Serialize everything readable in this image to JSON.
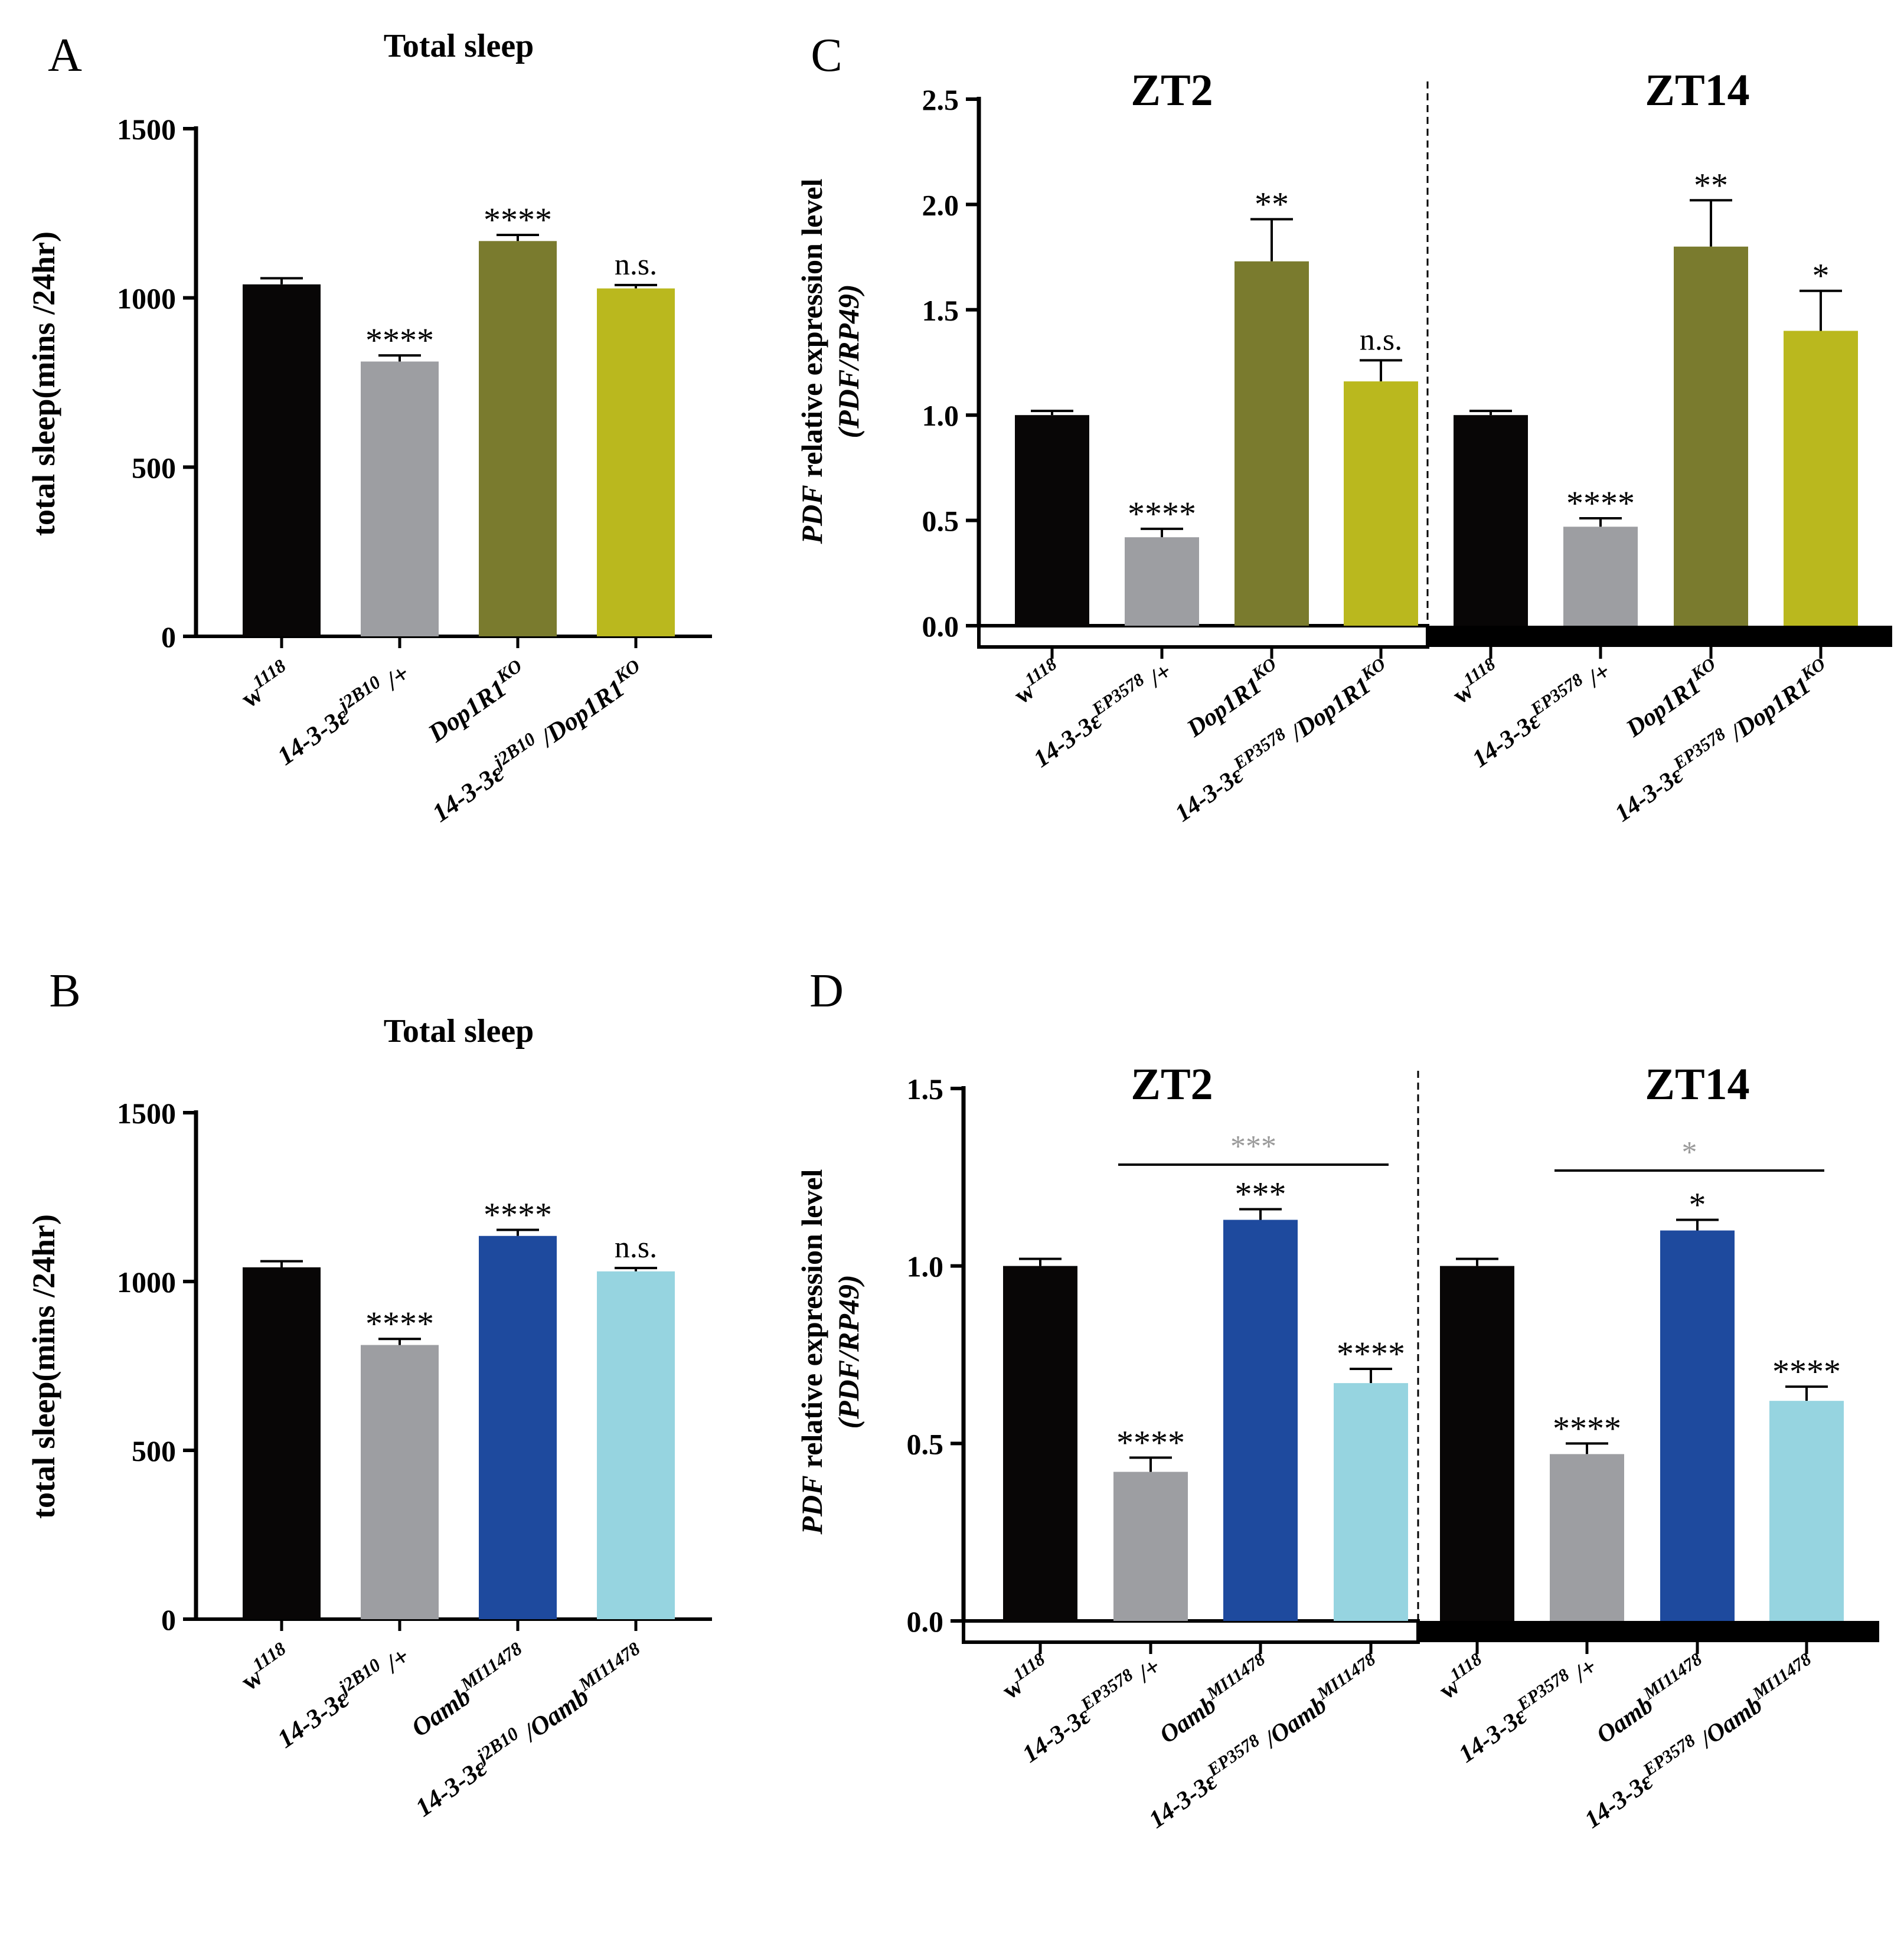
{
  "figure": {
    "background": "#ffffff"
  },
  "chart_data": [
    {
      "id": "A",
      "panel_label": "A",
      "type": "bar",
      "title": "Total sleep",
      "ylabel": "total sleep(mins /24hr)",
      "ylim": [
        0,
        1500
      ],
      "yticks": [
        0,
        500,
        1000,
        1500
      ],
      "categories": [
        {
          "base": "w",
          "sup": "1118"
        },
        {
          "base": "14-3-3ε",
          "sup": "j2B10",
          "suffix": " /+"
        },
        {
          "base": "Dop1R1",
          "sup": "KO"
        },
        {
          "base": "14-3-3ε",
          "sup": "j2B10",
          "suffix": " /Dop1R1",
          "sup2": "KO"
        }
      ],
      "values": [
        1040,
        812,
        1168,
        1028
      ],
      "errors": [
        18,
        18,
        18,
        10
      ],
      "annotations": [
        "",
        "****",
        "****",
        "n.s."
      ],
      "colors": [
        "#080606",
        "#9d9ea2",
        "#7a7b2e",
        "#bab81e"
      ]
    },
    {
      "id": "B",
      "panel_label": "B",
      "type": "bar",
      "title": "Total sleep",
      "ylabel": "total sleep(mins /24hr)",
      "ylim": [
        0,
        1500
      ],
      "yticks": [
        0,
        500,
        1000,
        1500
      ],
      "categories": [
        {
          "base": "w",
          "sup": "1118"
        },
        {
          "base": "14-3-3ε",
          "sup": "j2B10",
          "suffix": " /+"
        },
        {
          "base": "Oamb",
          "sup": "MI11478"
        },
        {
          "base": "14-3-3ε",
          "sup": "j2B10",
          "suffix": " /Oamb",
          "sup2": "MI11478"
        }
      ],
      "values": [
        1042,
        812,
        1135,
        1030
      ],
      "errors": [
        18,
        18,
        18,
        10
      ],
      "annotations": [
        "",
        "****",
        "****",
        "n.s."
      ],
      "colors": [
        "#080606",
        "#9d9ea2",
        "#1e4a9e",
        "#96d4e0"
      ]
    },
    {
      "id": "C",
      "panel_label": "C",
      "type": "bar",
      "ylabel": "PDF relative expression level (PDF/RP49)",
      "ylim": [
        0,
        2.5
      ],
      "yticks": [
        "0.0",
        "0.5",
        "1.0",
        "1.5",
        "2.0",
        "2.5"
      ],
      "groups": [
        "ZT2",
        "ZT14"
      ],
      "light_bar": [
        "light",
        "dark"
      ],
      "categories": [
        {
          "base": "w",
          "sup": "1118"
        },
        {
          "base": "14-3-3ε",
          "sup": "EP3578",
          "suffix": " /+"
        },
        {
          "base": "Dop1R1",
          "sup": "KO"
        },
        {
          "base": "14-3-3ε",
          "sup": "EP3578",
          "suffix": " /Dop1R1",
          "sup2": "KO"
        },
        {
          "base": "w",
          "sup": "1118"
        },
        {
          "base": "14-3-3ε",
          "sup": "EP3578",
          "suffix": " /+"
        },
        {
          "base": "Dop1R1",
          "sup": "KO"
        },
        {
          "base": "14-3-3ε",
          "sup": "EP3578",
          "suffix": " /Dop1R1",
          "sup2": "KO"
        }
      ],
      "values": [
        1.0,
        0.42,
        1.73,
        1.16,
        1.0,
        0.47,
        1.8,
        1.4
      ],
      "errors": [
        0.02,
        0.04,
        0.2,
        0.1,
        0.02,
        0.04,
        0.22,
        0.19
      ],
      "annotations": [
        "",
        "****",
        "**",
        "n.s.",
        "",
        "****",
        "**",
        "*"
      ],
      "colors": [
        "#080606",
        "#9d9ea2",
        "#7a7b2e",
        "#bab81e",
        "#080606",
        "#9d9ea2",
        "#7a7b2e",
        "#bab81e"
      ]
    },
    {
      "id": "D",
      "panel_label": "D",
      "type": "bar",
      "ylabel": "PDF relative expression level (PDF/RP49)",
      "ylim": [
        0,
        1.5
      ],
      "yticks": [
        "0.0",
        "0.5",
        "1.0",
        "1.5"
      ],
      "groups": [
        "ZT2",
        "ZT14"
      ],
      "light_bar": [
        "light",
        "dark"
      ],
      "categories": [
        {
          "base": "w",
          "sup": "1118"
        },
        {
          "base": "14-3-3ε",
          "sup": "EP3578",
          "suffix": " /+"
        },
        {
          "base": "Oamb",
          "sup": "MI11478"
        },
        {
          "base": "14-3-3ε",
          "sup": "EP3578",
          "suffix": " /Oamb",
          "sup2": "MI11478"
        },
        {
          "base": "w",
          "sup": "1118"
        },
        {
          "base": "14-3-3ε",
          "sup": "EP3578",
          "suffix": " /+"
        },
        {
          "base": "Oamb",
          "sup": "MI11478"
        },
        {
          "base": "14-3-3ε",
          "sup": "EP3578",
          "suffix": " /Oamb",
          "sup2": "MI11478"
        }
      ],
      "values": [
        1.0,
        0.42,
        1.13,
        0.67,
        1.0,
        0.47,
        1.1,
        0.62
      ],
      "errors": [
        0.02,
        0.04,
        0.03,
        0.04,
        0.02,
        0.03,
        0.03,
        0.04
      ],
      "annotations": [
        "",
        "****",
        "***",
        "****",
        "",
        "****",
        "*",
        "****"
      ],
      "colors": [
        "#080606",
        "#9d9ea2",
        "#1e4a9e",
        "#96d4e0",
        "#080606",
        "#9d9ea2",
        "#1e4a9e",
        "#96d4e0"
      ],
      "comparisons": [
        {
          "from": 2,
          "to": 4,
          "label": "***"
        },
        {
          "from": 6,
          "to": 8,
          "label": "*"
        }
      ]
    }
  ]
}
